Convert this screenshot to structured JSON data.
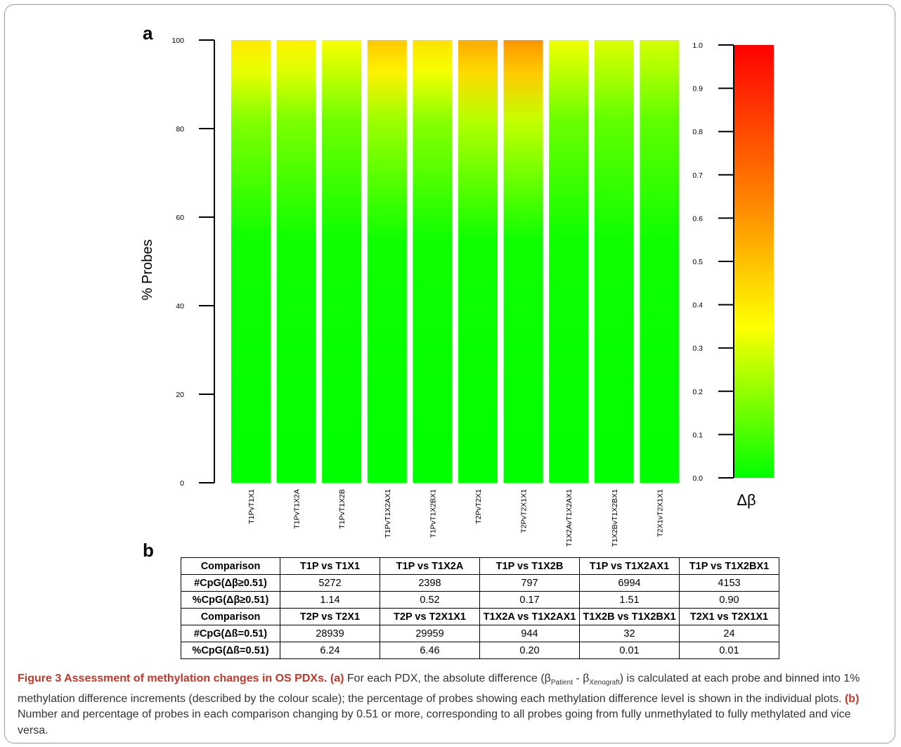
{
  "figure": {
    "panel_a": "a",
    "panel_b": "b"
  },
  "chart_data": {
    "type": "bar",
    "chart_kind": "stacked heat-colored 100% bars",
    "ylabel": "% Probes",
    "ylim": [
      0,
      100
    ],
    "yticks": [
      0,
      20,
      40,
      60,
      80,
      100
    ],
    "categories": [
      "T1PvT1X1",
      "T1PvT1X2A",
      "T1PvT1X2B",
      "T1PvT1X2AX1",
      "T1PvT1X2BX1",
      "T2PvT2X1",
      "T2PvT2X1X1",
      "T1X2AvT1X2AX1",
      "T1X2BvT1X2BX1",
      "T2X1vT2X1X1"
    ],
    "values": [
      100,
      100,
      100,
      100,
      100,
      100,
      100,
      100,
      100,
      100
    ],
    "top_color_delta_beta": [
      0.4,
      0.38,
      0.34,
      0.48,
      0.42,
      0.55,
      0.6,
      0.33,
      0.3,
      0.29
    ],
    "colorbar": {
      "label": "Δβ",
      "range": [
        0.0,
        1.0
      ],
      "ticks": [
        "0.0",
        "0.1",
        "0.2",
        "0.3",
        "0.4",
        "0.5",
        "0.6",
        "0.7",
        "0.8",
        "0.9",
        "1.0"
      ],
      "colors": {
        "low": "#00ff00",
        "mid": "#ffff00",
        "high_mid": "#ff8000",
        "high": "#ff0000"
      }
    },
    "grid": false,
    "legend": "right"
  },
  "table": {
    "rows": [
      {
        "head": "Comparison",
        "cells": [
          "T1P vs T1X1",
          "T1P vs T1X2A",
          "T1P vs T1X2B",
          "T1P vs T1X2AX1",
          "T1P vs T1X2BX1"
        ],
        "header": true
      },
      {
        "head": "#CpG(Δβ≥0.51)",
        "cells": [
          "5272",
          "2398",
          "797",
          "6994",
          "4153"
        ],
        "header": false
      },
      {
        "head": "%CpG(Δβ≥0.51)",
        "cells": [
          "1.14",
          "0.52",
          "0.17",
          "1.51",
          "0.90"
        ],
        "header": false
      },
      {
        "head": "Comparison",
        "cells": [
          "T2P vs T2X1",
          "T2P vs T2X1X1",
          "T1X2A vs T1X2AX1",
          "T1X2B vs T1X2BX1",
          "T2X1 vs T2X1X1"
        ],
        "header": true
      },
      {
        "head": "#CpG(Δß=0.51)",
        "cells": [
          "28939",
          "29959",
          "944",
          "32",
          "24"
        ],
        "header": false
      },
      {
        "head": "%CpG(Δß=0.51)",
        "cells": [
          "6.24",
          "6.46",
          "0.20",
          "0.01",
          "0.01"
        ],
        "header": false
      }
    ]
  },
  "caption": {
    "title": "Figure 3 Assessment of methylation changes in OS PDXs.",
    "part_a_label": "(a)",
    "part_a_pre": "For each PDX, the absolute difference (β",
    "sub_patient": "Patient",
    "part_a_minus": " - β",
    "sub_xeno": "Xenograft",
    "part_a_post": ") is calculated at each probe and binned into 1% methylation difference increments (described by the colour scale); the percentage of probes showing each methylation difference level is shown in the individual plots.",
    "part_b_label": "(b)",
    "part_b_text": "Number and percentage of probes in each comparison changing by 0.51 or more, corresponding to all probes going from fully unmethylated to fully methylated and vice versa."
  }
}
